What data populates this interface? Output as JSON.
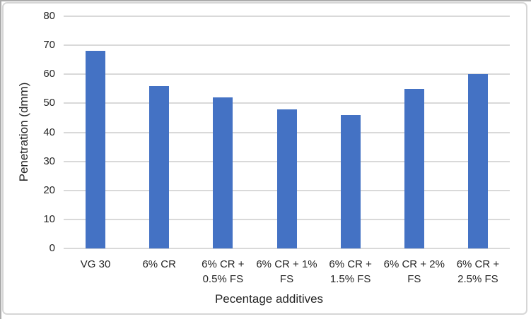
{
  "chart_data": {
    "type": "bar",
    "title": "",
    "xlabel": "Pecentage additives",
    "ylabel": "Penetration (dmm)",
    "categories": [
      "VG 30",
      "6% CR",
      "6% CR + 0.5% FS",
      "6% CR + 1% FS",
      "6% CR + 1.5% FS",
      "6% CR + 2% FS",
      "6% CR + 2.5% FS"
    ],
    "category_lines": [
      [
        "VG 30"
      ],
      [
        "6% CR"
      ],
      [
        "6% CR +",
        "0.5% FS"
      ],
      [
        "6% CR + 1%",
        "FS"
      ],
      [
        "6% CR +",
        "1.5% FS"
      ],
      [
        "6% CR + 2%",
        "FS"
      ],
      [
        "6% CR +",
        "2.5% FS"
      ]
    ],
    "values": [
      68,
      56,
      52,
      48,
      46,
      55,
      60
    ],
    "ylim": [
      0,
      80
    ],
    "yticks": [
      0,
      10,
      20,
      30,
      40,
      50,
      60,
      70,
      80
    ],
    "grid": true,
    "legend": "none",
    "bar_color": "#4472C4",
    "gridline_color": "#d9d9d9",
    "axis_text_color": "#262626"
  }
}
